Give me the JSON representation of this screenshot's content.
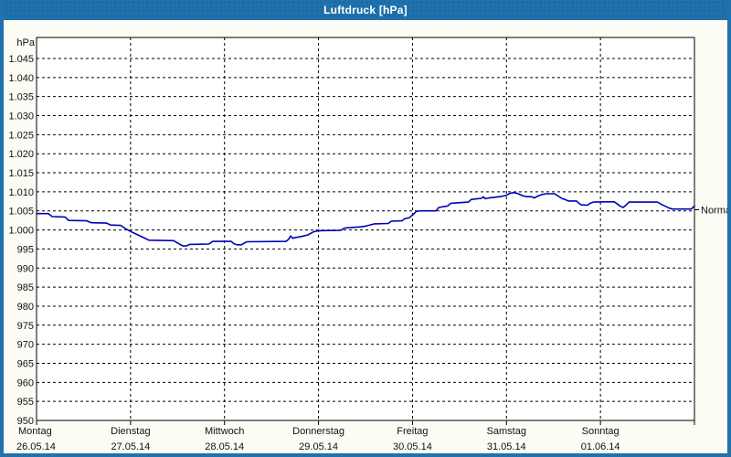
{
  "window": {
    "title": "Luftdruck [hPa]"
  },
  "colors": {
    "accent": "#1f72ad",
    "line": "#0000b4",
    "grid": "#000000",
    "text": "#111111",
    "plot_bg": "#ffffff",
    "window_bg": "#fcfcf5"
  },
  "chart_data": {
    "type": "line",
    "title": "Luftdruck [hPa]",
    "grid": "on",
    "y_axis": {
      "unit_label": "hPa",
      "min": 950,
      "max": 1050,
      "tick_step": 5,
      "ticks": [
        {
          "value": 1045,
          "label": "1.045"
        },
        {
          "value": 1040,
          "label": "1.040"
        },
        {
          "value": 1035,
          "label": "1.035"
        },
        {
          "value": 1030,
          "label": "1.030"
        },
        {
          "value": 1025,
          "label": "1.025"
        },
        {
          "value": 1020,
          "label": "1.020"
        },
        {
          "value": 1015,
          "label": "1.015"
        },
        {
          "value": 1010,
          "label": "1.010"
        },
        {
          "value": 1005,
          "label": "1.005"
        },
        {
          "value": 1000,
          "label": "1.000"
        },
        {
          "value": 995,
          "label": "995"
        },
        {
          "value": 990,
          "label": "990"
        },
        {
          "value": 985,
          "label": "985"
        },
        {
          "value": 980,
          "label": "980"
        },
        {
          "value": 975,
          "label": "975"
        },
        {
          "value": 970,
          "label": "970"
        },
        {
          "value": 965,
          "label": "965"
        },
        {
          "value": 960,
          "label": "960"
        },
        {
          "value": 955,
          "label": "955"
        },
        {
          "value": 950,
          "label": "950"
        }
      ]
    },
    "x_axis": {
      "hours_total": 168,
      "days": [
        {
          "name": "Montag",
          "date": "26.05.14"
        },
        {
          "name": "Dienstag",
          "date": "27.05.14"
        },
        {
          "name": "Mittwoch",
          "date": "28.05.14"
        },
        {
          "name": "Donnerstag",
          "date": "29.05.14"
        },
        {
          "name": "Freitag",
          "date": "30.05.14"
        },
        {
          "name": "Samstag",
          "date": "31.05.14"
        },
        {
          "name": "Sonntag",
          "date": "01.06.14"
        }
      ]
    },
    "annotation": {
      "label": "Normal",
      "value": 1005.3
    },
    "series": [
      {
        "name": "Luftdruck",
        "color": "#0000b4",
        "points_hours_hpa": [
          [
            0,
            1004.3
          ],
          [
            3,
            1004.3
          ],
          [
            4,
            1003.5
          ],
          [
            7.3,
            1003.4
          ],
          [
            8.2,
            1002.5
          ],
          [
            12.8,
            1002.4
          ],
          [
            14,
            1001.9
          ],
          [
            17.9,
            1001.8
          ],
          [
            18.9,
            1001.3
          ],
          [
            21.5,
            1001.2
          ],
          [
            22.6,
            1000.4
          ],
          [
            24,
            999.6
          ],
          [
            25.7,
            998.8
          ],
          [
            27.3,
            998.0
          ],
          [
            28.7,
            997.3
          ],
          [
            35,
            997.2
          ],
          [
            36,
            996.6
          ],
          [
            36.8,
            996.1
          ],
          [
            37.4,
            995.8
          ],
          [
            38.3,
            995.8
          ],
          [
            39,
            996.2
          ],
          [
            44,
            996.3
          ],
          [
            45,
            997.0
          ],
          [
            49.7,
            997.0
          ],
          [
            50.4,
            996.4
          ],
          [
            51.2,
            996.1
          ],
          [
            52.3,
            996.1
          ],
          [
            53.7,
            996.9
          ],
          [
            63.7,
            997.0
          ],
          [
            64.4,
            997.6
          ],
          [
            64.9,
            998.4
          ],
          [
            65.4,
            997.8
          ],
          [
            66.1,
            998.0
          ],
          [
            67.7,
            998.3
          ],
          [
            69.3,
            998.7
          ],
          [
            70.7,
            999.5
          ],
          [
            71.9,
            999.8
          ],
          [
            77.7,
            999.9
          ],
          [
            78.6,
            1000.5
          ],
          [
            82.8,
            1000.8
          ],
          [
            84,
            1001.0
          ],
          [
            86.3,
            1001.6
          ],
          [
            89.8,
            1001.7
          ],
          [
            90.6,
            1002.3
          ],
          [
            93.3,
            1002.4
          ],
          [
            94.1,
            1003.0
          ],
          [
            95.2,
            1003.2
          ],
          [
            96.1,
            1004.0
          ],
          [
            97,
            1004.9
          ],
          [
            98,
            1005.0
          ],
          [
            102,
            1005.0
          ],
          [
            102.7,
            1005.9
          ],
          [
            105,
            1006.3
          ],
          [
            105.8,
            1007.0
          ],
          [
            110.3,
            1007.3
          ],
          [
            111,
            1008.0
          ],
          [
            113.6,
            1008.3
          ],
          [
            114.1,
            1008.7
          ],
          [
            114.6,
            1008.2
          ],
          [
            115.5,
            1008.4
          ],
          [
            118.7,
            1008.8
          ],
          [
            120,
            1009.1
          ],
          [
            120.9,
            1009.6
          ],
          [
            121.8,
            1009.8
          ],
          [
            122.8,
            1009.6
          ],
          [
            124.1,
            1009.0
          ],
          [
            124.8,
            1008.8
          ],
          [
            126.5,
            1008.7
          ],
          [
            127.1,
            1008.4
          ],
          [
            128,
            1008.9
          ],
          [
            129.1,
            1009.3
          ],
          [
            130.1,
            1009.5
          ],
          [
            132.3,
            1009.5
          ],
          [
            133.2,
            1008.9
          ],
          [
            134.1,
            1008.3
          ],
          [
            134.9,
            1008.0
          ],
          [
            135.8,
            1007.6
          ],
          [
            137.9,
            1007.6
          ],
          [
            138.5,
            1007.0
          ],
          [
            139.1,
            1006.6
          ],
          [
            140.7,
            1006.5
          ],
          [
            141.4,
            1007.0
          ],
          [
            142.2,
            1007.3
          ],
          [
            147.5,
            1007.4
          ],
          [
            148.3,
            1006.8
          ],
          [
            149.1,
            1006.2
          ],
          [
            149.8,
            1005.9
          ],
          [
            150.6,
            1006.6
          ],
          [
            151.3,
            1007.3
          ],
          [
            158.5,
            1007.3
          ],
          [
            159.6,
            1006.7
          ],
          [
            160.6,
            1006.2
          ],
          [
            161.6,
            1005.7
          ],
          [
            162.4,
            1005.5
          ],
          [
            167.2,
            1005.5
          ],
          [
            168,
            1006.3
          ]
        ]
      }
    ]
  }
}
